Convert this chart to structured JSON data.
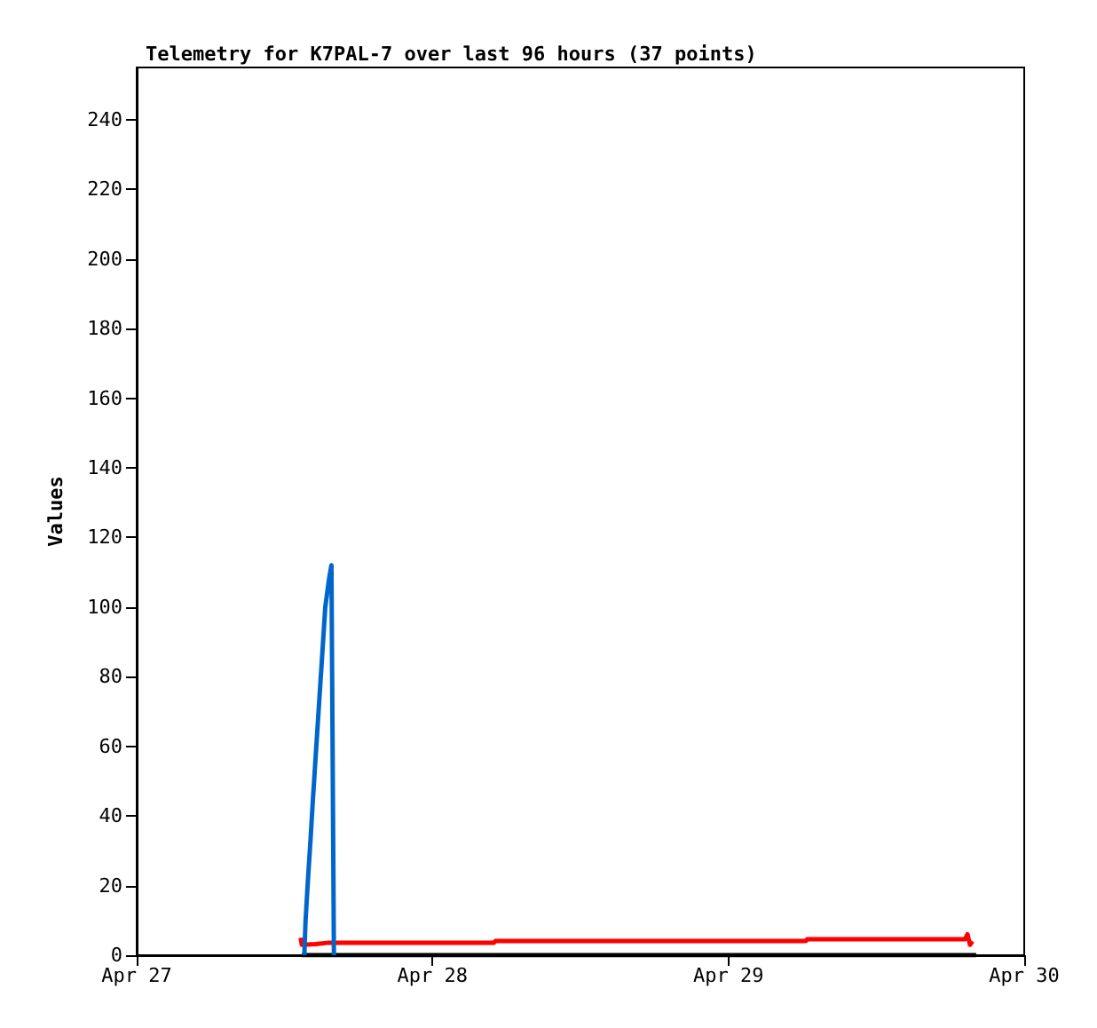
{
  "chart_data": {
    "type": "line",
    "title": "Telemetry for K7PAL-7 over last 96 hours (37 points)",
    "ylabel": "Values",
    "xlim": [
      "--04-27",
      "--04-30"
    ],
    "xticks": [
      {
        "value": "--04-27",
        "label": "Apr 27"
      },
      {
        "value": "--04-28",
        "label": "Apr 28"
      },
      {
        "value": "--04-29",
        "label": "Apr 29"
      },
      {
        "value": "--04-30",
        "label": "Apr 30"
      }
    ],
    "ylim": [
      0,
      255
    ],
    "yticks": [
      0,
      20,
      40,
      60,
      80,
      100,
      120,
      140,
      160,
      180,
      200,
      220,
      240
    ],
    "grid": false,
    "marker": "none",
    "line_style": "solid",
    "series": [
      {
        "color": "#000000",
        "x": [
          "--04-27T13:24",
          "--04-29T20:06"
        ],
        "values": [
          0,
          0
        ]
      },
      {
        "color": "#ff0000",
        "x": [
          "--04-27T13:18",
          "--04-27T13:24",
          "--04-27T14:30",
          "--04-27T15:36",
          "--04-28T05:00",
          "--04-28T05:06",
          "--04-29T06:18",
          "--04-29T06:24",
          "--04-29T19:12",
          "--04-29T19:24",
          "--04-29T19:36",
          "--04-29T19:48"
        ],
        "values": [
          5,
          3,
          3.2,
          3.6,
          3.6,
          4.1,
          4.1,
          4.6,
          4.6,
          6,
          3,
          4
        ]
      },
      {
        "color": "#0066cc",
        "x": [
          "--04-27T13:36",
          "--04-27T13:42",
          "--04-27T13:54",
          "--04-27T14:06",
          "--04-27T14:18",
          "--04-27T14:30",
          "--04-27T14:42",
          "--04-27T14:54",
          "--04-27T15:06",
          "--04-27T15:18",
          "--04-27T15:36",
          "--04-27T15:48",
          "--04-27T15:54",
          "--04-27T16:00"
        ],
        "values": [
          0,
          10,
          22,
          33,
          45,
          56,
          67,
          78,
          89,
          100,
          108,
          112,
          56,
          0
        ]
      }
    ]
  }
}
